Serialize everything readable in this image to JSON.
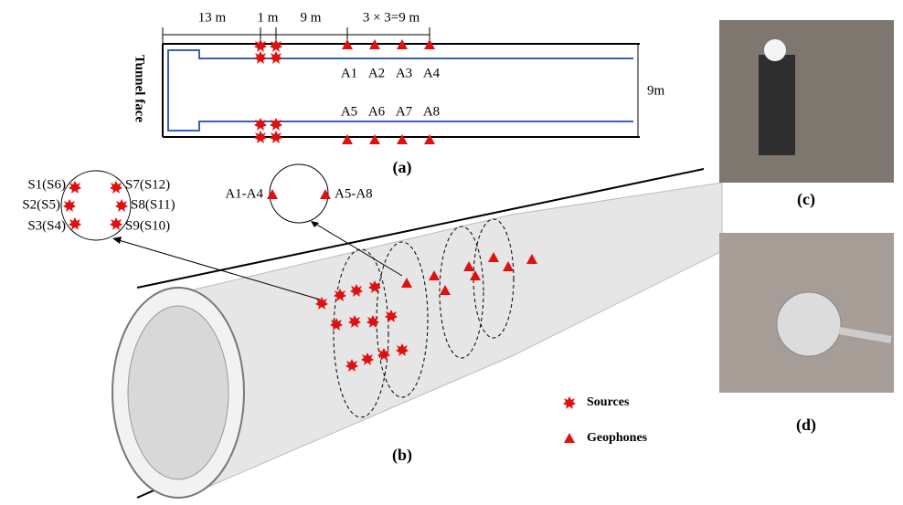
{
  "panel_a": {
    "dimensions": [
      "13 m",
      "1 m",
      "9 m",
      "3 × 3=9 m"
    ],
    "height": "9m",
    "tunnel_face": "Tunnel face",
    "geophones": [
      "A1",
      "A2",
      "A3",
      "A4",
      "A5",
      "A6",
      "A7",
      "A8"
    ],
    "caption": "(a)"
  },
  "panel_b": {
    "sources": [
      "S1(S6)",
      "S2(S5)",
      "S3(S4)",
      "S7(S12)",
      "S8(S11)",
      "S9(S10)"
    ],
    "geophone_groups": [
      "A1-A4",
      "A5-A8"
    ],
    "legend": [
      "Sources",
      "Geophones"
    ],
    "caption": "(b)"
  },
  "panel_c": {
    "caption": "(c)"
  },
  "panel_d": {
    "caption": "(d)"
  }
}
